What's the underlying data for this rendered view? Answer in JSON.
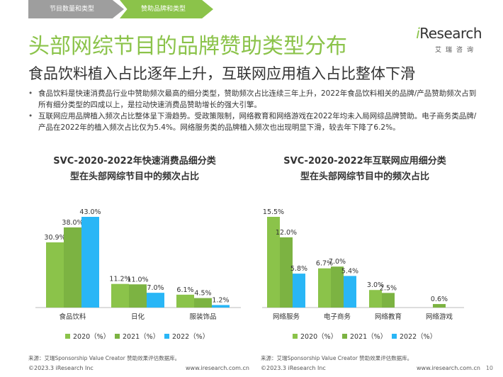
{
  "tabs": [
    "节目数量和类型",
    "赞助品牌和类型"
  ],
  "logo": {
    "main": "iResearch",
    "sub": "艾瑞咨询"
  },
  "title": "头部网综节目的品牌赞助类型分布",
  "subtitle": "食品饮料植入占比逐年上升，互联网应用植入占比整体下滑",
  "bullets": [
    "食品饮料是快速消费品行业中赞助频次最高的细分类型，赞助频次占比连续三年上升，2022年食品饮料相关的品牌/产品赞助频次占到所有细分类型的四成以上，是拉动快速消费品赞助增长的强大引擎。",
    "互联网应用品牌植入频次占比整体呈下滑趋势。受政策限制，网络教育和网络游戏在2022年均未入局网综品牌赞助。电子商务类品牌/产品在2022年的植入频次占比仅为5.4%。网络服务类的品牌植入频次也出现明显下滑，较去年下降了6.2%。"
  ],
  "colors": {
    "c2020": "#8bc34a",
    "c2021": "#7cb342",
    "c2022": "#29b6f6"
  },
  "chart_data": [
    {
      "type": "bar",
      "title": "SVC-2020-2022年快速消费品细分类型在头部网综节目中的频次占比",
      "title_lines": [
        "SVC-2020-2022年快速消费品细分类",
        "型在头部网综节目中的频次占比"
      ],
      "categories": [
        "食品饮料",
        "日化",
        "服装饰品"
      ],
      "series": [
        {
          "name": "2020（%）",
          "values": [
            30.9,
            11.2,
            6.1
          ],
          "labels": [
            "30.9%",
            "11.2%",
            "6.1%"
          ]
        },
        {
          "name": "2021（%）",
          "values": [
            38.0,
            11.0,
            4.5
          ],
          "labels": [
            "38.0%",
            "11.0%",
            "4.5%"
          ]
        },
        {
          "name": "2022（%）",
          "values": [
            43.0,
            7.0,
            1.2
          ],
          "labels": [
            "43.0%",
            "7.0%",
            "1.2%"
          ]
        }
      ],
      "ylim": [
        0,
        43.0
      ],
      "legend": "bottom"
    },
    {
      "type": "bar",
      "title": "SVC-2020-2022年互联网应用细分类型在头部网综节目中的频次占比",
      "title_lines": [
        "SVC-2020-2022年互联网应用细分类",
        "型在头部网综节目中的频次占比"
      ],
      "categories": [
        "网络服务",
        "电子商务",
        "网络教育",
        "网络游戏"
      ],
      "series": [
        {
          "name": "2020（%）",
          "values": [
            15.5,
            6.7,
            3.0,
            0
          ],
          "labels": [
            "15.5%",
            "6.7%",
            "3.0%",
            ""
          ]
        },
        {
          "name": "2021（%）",
          "values": [
            12.0,
            7.0,
            2.5,
            0.6
          ],
          "labels": [
            "12.0%",
            "7.0%",
            "2.5%",
            "0.6%"
          ]
        },
        {
          "name": "2022（%）",
          "values": [
            5.8,
            5.4,
            0,
            0
          ],
          "labels": [
            "5.8%",
            "5.4%",
            "",
            ""
          ]
        }
      ],
      "ylim": [
        0,
        15.5
      ],
      "legend": "bottom"
    }
  ],
  "source": "来源：艾瑞Sponsorship Value Creator 赞助效果评估数据库。",
  "footer_left": "©2023.3 iResearch Inc",
  "footer_right": "www.iresearch.com.cn",
  "page_number": "10"
}
